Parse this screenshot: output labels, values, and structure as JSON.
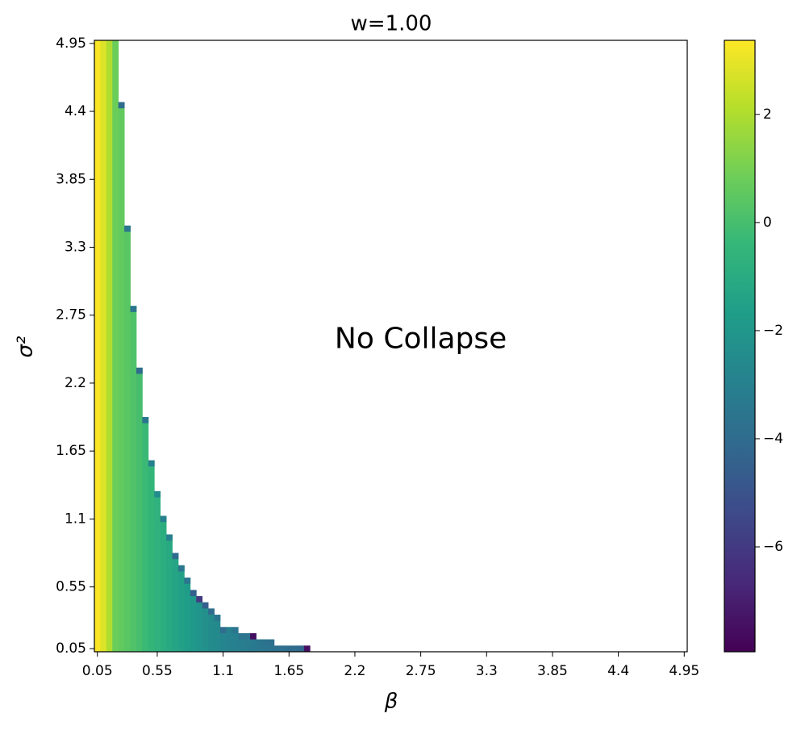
{
  "chart_data": {
    "type": "heatmap",
    "title": "w=1.00",
    "xlabel": "β",
    "ylabel": "σ²",
    "annotation": {
      "text": "No Collapse",
      "x": 2.75,
      "y": 2.55
    },
    "xlim": [
      0.025,
      4.975
    ],
    "ylim": [
      0.025,
      4.975
    ],
    "cell": 0.05,
    "xticks": [
      0.05,
      0.55,
      1.1,
      1.65,
      2.2,
      2.75,
      3.3,
      3.85,
      4.4,
      4.95
    ],
    "yticks": [
      0.05,
      0.55,
      1.1,
      1.65,
      2.2,
      2.75,
      3.3,
      3.85,
      4.4,
      4.95
    ],
    "clim": [
      -7.94,
      3.37
    ],
    "cticks": [
      {
        "value": -6,
        "label": "−6"
      },
      {
        "value": -4,
        "label": "−4"
      },
      {
        "value": -2,
        "label": "−2"
      },
      0,
      2
    ],
    "colormap": [
      "#440154",
      "#482878",
      "#3e4989",
      "#31688e",
      "#26828e",
      "#1f9e89",
      "#35b779",
      "#6ece58",
      "#b5de2b",
      "#fde725"
    ],
    "columns": [
      {
        "beta": 0.05,
        "top": 4.95,
        "value": 3.3
      },
      {
        "beta": 0.1,
        "top": 4.95,
        "value": 2.8
      },
      {
        "beta": 0.15,
        "top": 4.95,
        "value": 2.0
      },
      {
        "beta": 0.2,
        "top": 4.95,
        "value": 0.8
      },
      {
        "beta": 0.25,
        "top": 4.45,
        "value": 0.6,
        "edge": -4.0
      },
      {
        "beta": 0.3,
        "top": 3.45,
        "value": 0.4,
        "edge": -3.5
      },
      {
        "beta": 0.35,
        "top": 2.8,
        "value": 0.2,
        "edge": -3.5
      },
      {
        "beta": 0.4,
        "top": 2.3,
        "value": 0.0,
        "edge": -4.0
      },
      {
        "beta": 0.45,
        "top": 1.9,
        "value": -0.3,
        "edge": -3.5
      },
      {
        "beta": 0.5,
        "top": 1.55,
        "value": -0.5,
        "edge": -3.0
      },
      {
        "beta": 0.55,
        "top": 1.3,
        "value": -0.7,
        "edge": -2.5
      },
      {
        "beta": 0.6,
        "top": 1.1,
        "value": -0.9,
        "edge": -3.0
      },
      {
        "beta": 0.65,
        "top": 0.95,
        "value": -1.1,
        "edge": -3.0
      },
      {
        "beta": 0.7,
        "top": 0.8,
        "value": -1.3,
        "edge": -4.0
      },
      {
        "beta": 0.75,
        "top": 0.7,
        "value": -1.5,
        "edge": -3.5
      },
      {
        "beta": 0.8,
        "top": 0.6,
        "value": -1.7,
        "edge": -3.5
      },
      {
        "beta": 0.85,
        "top": 0.5,
        "value": -1.9,
        "edge": -4.5
      },
      {
        "beta": 0.9,
        "top": 0.45,
        "value": -2.1,
        "edge": -6.0
      },
      {
        "beta": 0.95,
        "top": 0.4,
        "value": -2.3,
        "edge": -4.5
      },
      {
        "beta": 1.0,
        "top": 0.35,
        "value": -2.5,
        "edge": -4.0
      },
      {
        "beta": 1.05,
        "top": 0.3,
        "value": -2.6,
        "edge": -3.5
      },
      {
        "beta": 1.1,
        "top": 0.2,
        "value": -2.8,
        "edge": -4.0
      },
      {
        "beta": 1.15,
        "top": 0.2,
        "value": -2.9,
        "edge": -3.0
      },
      {
        "beta": 1.2,
        "top": 0.2,
        "value": -3.0,
        "edge": -3.5
      },
      {
        "beta": 1.25,
        "top": 0.15,
        "value": -3.1,
        "edge": -3.5
      },
      {
        "beta": 1.3,
        "top": 0.15,
        "value": -3.2,
        "edge": -3.5
      },
      {
        "beta": 1.35,
        "top": 0.15,
        "value": -3.3,
        "edge": -7.5
      },
      {
        "beta": 1.4,
        "top": 0.1,
        "value": -3.4,
        "edge": -3.5
      },
      {
        "beta": 1.45,
        "top": 0.1,
        "value": -3.5,
        "edge": -3.6
      },
      {
        "beta": 1.5,
        "top": 0.1,
        "value": -3.6,
        "edge": -3.8
      },
      {
        "beta": 1.55,
        "top": 0.05,
        "value": -3.8
      },
      {
        "beta": 1.6,
        "top": 0.05,
        "value": -3.8
      },
      {
        "beta": 1.65,
        "top": 0.05,
        "value": -4.0
      },
      {
        "beta": 1.7,
        "top": 0.05,
        "value": -4.0
      },
      {
        "beta": 1.75,
        "top": 0.05,
        "value": -4.2
      },
      {
        "beta": 1.8,
        "top": 0.05,
        "value": -7.5
      }
    ]
  }
}
